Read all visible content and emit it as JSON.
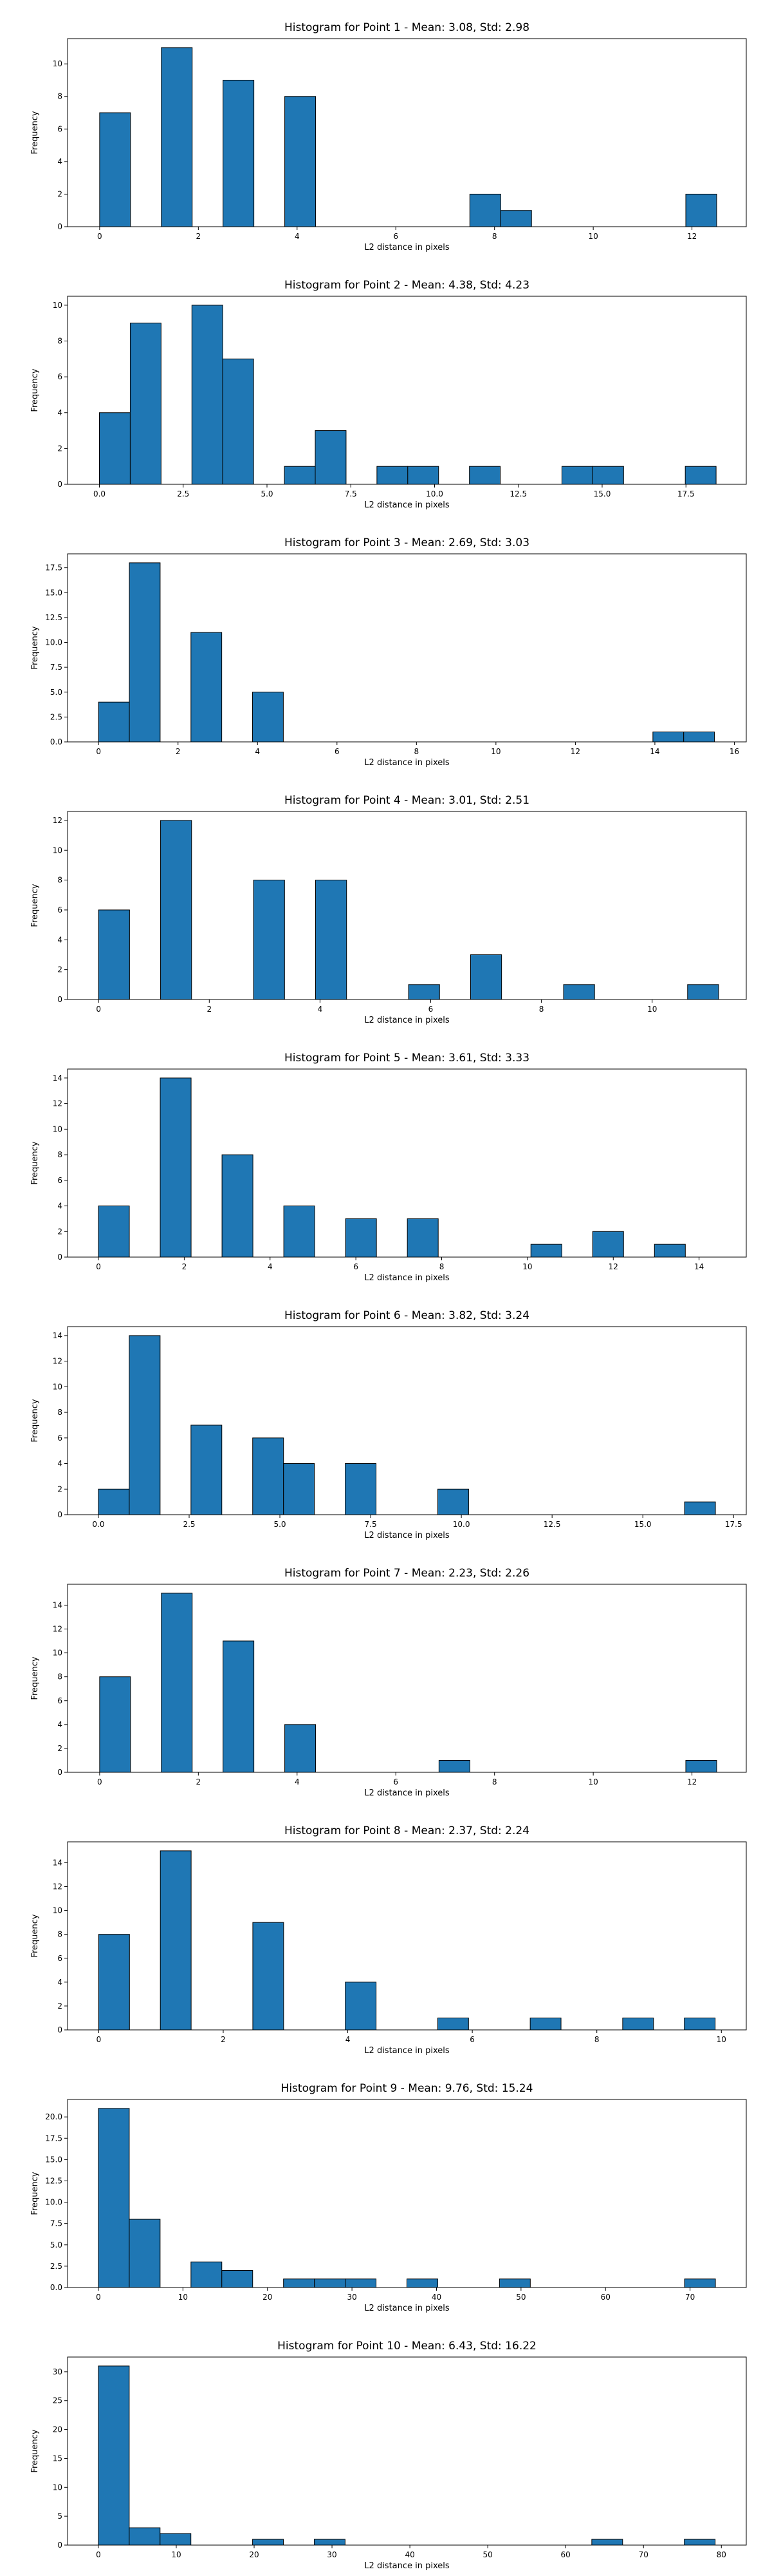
{
  "style": {
    "bar_color": "#1f77b4",
    "edge_color": "#000000"
  },
  "chart_data": [
    {
      "type": "bar",
      "title": "Histogram for Point 1 - Mean: 3.08, Std: 2.98",
      "xlabel": "L2 distance in pixels",
      "ylabel": "Frequency",
      "xlim": [
        -0.65,
        13.1
      ],
      "ylim": [
        0,
        11.55
      ],
      "xticks": [
        0,
        2,
        4,
        6,
        8,
        10,
        12
      ],
      "xtick_labels": [
        "0",
        "2",
        "4",
        "6",
        "8",
        "10",
        "12"
      ],
      "yticks": [
        0,
        2,
        4,
        6,
        8,
        10
      ],
      "ytick_labels": [
        "0",
        "2",
        "4",
        "6",
        "8",
        "10"
      ],
      "bins": [
        {
          "x0": 0.0,
          "x1": 0.625,
          "count": 7
        },
        {
          "x0": 1.25,
          "x1": 1.875,
          "count": 11
        },
        {
          "x0": 2.5,
          "x1": 3.125,
          "count": 9
        },
        {
          "x0": 3.75,
          "x1": 4.375,
          "count": 8
        },
        {
          "x0": 7.5,
          "x1": 8.125,
          "count": 2
        },
        {
          "x0": 8.125,
          "x1": 8.75,
          "count": 1
        },
        {
          "x0": 11.875,
          "x1": 12.5,
          "count": 2
        }
      ]
    },
    {
      "type": "bar",
      "title": "Histogram for Point 2 - Mean: 4.38, Std: 4.23",
      "xlabel": "L2 distance in pixels",
      "ylabel": "Frequency",
      "xlim": [
        -0.95,
        19.3
      ],
      "ylim": [
        0,
        10.5
      ],
      "xticks": [
        0,
        2.5,
        5,
        7.5,
        10,
        12.5,
        15,
        17.5
      ],
      "xtick_labels": [
        "0.0",
        "2.5",
        "5.0",
        "7.5",
        "10.0",
        "12.5",
        "15.0",
        "17.5"
      ],
      "yticks": [
        0,
        2,
        4,
        6,
        8,
        10
      ],
      "ytick_labels": [
        "0",
        "2",
        "4",
        "6",
        "8",
        "10"
      ],
      "bins": [
        {
          "x0": 0.0,
          "x1": 0.92,
          "count": 4
        },
        {
          "x0": 0.92,
          "x1": 1.84,
          "count": 9
        },
        {
          "x0": 2.76,
          "x1": 3.68,
          "count": 10
        },
        {
          "x0": 3.68,
          "x1": 4.6,
          "count": 7
        },
        {
          "x0": 5.52,
          "x1": 6.44,
          "count": 1
        },
        {
          "x0": 6.44,
          "x1": 7.36,
          "count": 3
        },
        {
          "x0": 8.28,
          "x1": 9.2,
          "count": 1
        },
        {
          "x0": 9.2,
          "x1": 10.12,
          "count": 1
        },
        {
          "x0": 11.04,
          "x1": 11.96,
          "count": 1
        },
        {
          "x0": 13.8,
          "x1": 14.72,
          "count": 1
        },
        {
          "x0": 14.72,
          "x1": 15.64,
          "count": 1
        },
        {
          "x0": 17.48,
          "x1": 18.4,
          "count": 1
        }
      ]
    },
    {
      "type": "bar",
      "title": "Histogram for Point 3 - Mean: 2.69, Std: 3.03",
      "xlabel": "L2 distance in pixels",
      "ylabel": "Frequency",
      "xlim": [
        -0.78,
        16.3
      ],
      "ylim": [
        0,
        18.9
      ],
      "xticks": [
        0,
        2,
        4,
        6,
        8,
        10,
        12,
        14,
        16
      ],
      "xtick_labels": [
        "0",
        "2",
        "4",
        "6",
        "8",
        "10",
        "12",
        "14",
        "16"
      ],
      "yticks": [
        0,
        2.5,
        5,
        7.5,
        10,
        12.5,
        15,
        17.5
      ],
      "ytick_labels": [
        "0.0",
        "2.5",
        "5.0",
        "7.5",
        "10.0",
        "12.5",
        "15.0",
        "17.5"
      ],
      "bins": [
        {
          "x0": 0.0,
          "x1": 0.775,
          "count": 4
        },
        {
          "x0": 0.775,
          "x1": 1.55,
          "count": 18
        },
        {
          "x0": 2.325,
          "x1": 3.1,
          "count": 11
        },
        {
          "x0": 3.875,
          "x1": 4.65,
          "count": 5
        },
        {
          "x0": 13.95,
          "x1": 14.725,
          "count": 1
        },
        {
          "x0": 14.725,
          "x1": 15.5,
          "count": 1
        }
      ]
    },
    {
      "type": "bar",
      "title": "Histogram for Point 4 - Mean: 3.01, Std: 2.51",
      "xlabel": "L2 distance in pixels",
      "ylabel": "Frequency",
      "xlim": [
        -0.56,
        11.7
      ],
      "ylim": [
        0,
        12.6
      ],
      "xticks": [
        0,
        2,
        4,
        6,
        8,
        10
      ],
      "xtick_labels": [
        "0",
        "2",
        "4",
        "6",
        "8",
        "10"
      ],
      "yticks": [
        0,
        2,
        4,
        6,
        8,
        10,
        12
      ],
      "ytick_labels": [
        "0",
        "2",
        "4",
        "6",
        "8",
        "10",
        "12"
      ],
      "bins": [
        {
          "x0": 0.0,
          "x1": 0.56,
          "count": 6
        },
        {
          "x0": 1.12,
          "x1": 1.68,
          "count": 12
        },
        {
          "x0": 2.8,
          "x1": 3.36,
          "count": 8
        },
        {
          "x0": 3.92,
          "x1": 4.48,
          "count": 8
        },
        {
          "x0": 5.6,
          "x1": 6.16,
          "count": 1
        },
        {
          "x0": 6.72,
          "x1": 7.28,
          "count": 3
        },
        {
          "x0": 8.4,
          "x1": 8.96,
          "count": 1
        },
        {
          "x0": 10.64,
          "x1": 11.2,
          "count": 1
        }
      ]
    },
    {
      "type": "bar",
      "title": "Histogram for Point 5 - Mean: 3.61, Std: 3.33",
      "xlabel": "L2 distance in pixels",
      "ylabel": "Frequency",
      "xlim": [
        -0.72,
        15.1
      ],
      "ylim": [
        0,
        14.7
      ],
      "xticks": [
        0,
        2,
        4,
        6,
        8,
        10,
        12,
        14
      ],
      "xtick_labels": [
        "0",
        "2",
        "4",
        "6",
        "8",
        "10",
        "12",
        "14"
      ],
      "yticks": [
        0,
        2,
        4,
        6,
        8,
        10,
        12,
        14
      ],
      "ytick_labels": [
        "0",
        "2",
        "4",
        "6",
        "8",
        "10",
        "12",
        "14"
      ],
      "bins": [
        {
          "x0": 0.0,
          "x1": 0.72,
          "count": 4
        },
        {
          "x0": 1.44,
          "x1": 2.16,
          "count": 14
        },
        {
          "x0": 2.88,
          "x1": 3.6,
          "count": 8
        },
        {
          "x0": 4.32,
          "x1": 5.04,
          "count": 4
        },
        {
          "x0": 5.76,
          "x1": 6.48,
          "count": 3
        },
        {
          "x0": 7.2,
          "x1": 7.92,
          "count": 3
        },
        {
          "x0": 10.08,
          "x1": 10.8,
          "count": 1
        },
        {
          "x0": 11.52,
          "x1": 12.24,
          "count": 2
        },
        {
          "x0": 12.96,
          "x1": 13.68,
          "count": 1
        }
      ]
    },
    {
      "type": "bar",
      "title": "Histogram for Point 6 - Mean: 3.82, Std: 3.24",
      "xlabel": "L2 distance in pixels",
      "ylabel": "Frequency",
      "xlim": [
        -0.85,
        17.85
      ],
      "ylim": [
        0,
        14.7
      ],
      "xticks": [
        0,
        2.5,
        5,
        7.5,
        10,
        12.5,
        15,
        17.5
      ],
      "xtick_labels": [
        "0.0",
        "2.5",
        "5.0",
        "7.5",
        "10.0",
        "12.5",
        "15.0",
        "17.5"
      ],
      "yticks": [
        0,
        2,
        4,
        6,
        8,
        10,
        12,
        14
      ],
      "ytick_labels": [
        "0",
        "2",
        "4",
        "6",
        "8",
        "10",
        "12",
        "14"
      ],
      "bins": [
        {
          "x0": 0.0,
          "x1": 0.85,
          "count": 2
        },
        {
          "x0": 0.85,
          "x1": 1.7,
          "count": 14
        },
        {
          "x0": 2.55,
          "x1": 3.4,
          "count": 7
        },
        {
          "x0": 4.25,
          "x1": 5.1,
          "count": 6
        },
        {
          "x0": 5.1,
          "x1": 5.95,
          "count": 4
        },
        {
          "x0": 6.8,
          "x1": 7.65,
          "count": 4
        },
        {
          "x0": 9.35,
          "x1": 10.2,
          "count": 2
        },
        {
          "x0": 16.15,
          "x1": 17.0,
          "count": 1
        }
      ]
    },
    {
      "type": "bar",
      "title": "Histogram for Point 7 - Mean: 2.23, Std: 2.26",
      "xlabel": "L2 distance in pixels",
      "ylabel": "Frequency",
      "xlim": [
        -0.65,
        13.1
      ],
      "ylim": [
        0,
        15.75
      ],
      "xticks": [
        0,
        2,
        4,
        6,
        8,
        10,
        12
      ],
      "xtick_labels": [
        "0",
        "2",
        "4",
        "6",
        "8",
        "10",
        "12"
      ],
      "yticks": [
        0,
        2,
        4,
        6,
        8,
        10,
        12,
        14
      ],
      "ytick_labels": [
        "0",
        "2",
        "4",
        "6",
        "8",
        "10",
        "12",
        "14"
      ],
      "bins": [
        {
          "x0": 0.0,
          "x1": 0.625,
          "count": 8
        },
        {
          "x0": 1.25,
          "x1": 1.875,
          "count": 15
        },
        {
          "x0": 2.5,
          "x1": 3.125,
          "count": 11
        },
        {
          "x0": 3.75,
          "x1": 4.375,
          "count": 4
        },
        {
          "x0": 6.875,
          "x1": 7.5,
          "count": 1
        },
        {
          "x0": 11.875,
          "x1": 12.5,
          "count": 1
        }
      ]
    },
    {
      "type": "bar",
      "title": "Histogram for Point 8 - Mean: 2.37, Std: 2.24",
      "xlabel": "L2 distance in pixels",
      "ylabel": "Frequency",
      "xlim": [
        -0.5,
        10.4
      ],
      "ylim": [
        0,
        15.75
      ],
      "xticks": [
        0,
        2,
        4,
        6,
        8,
        10
      ],
      "xtick_labels": [
        "0",
        "2",
        "4",
        "6",
        "8",
        "10"
      ],
      "yticks": [
        0,
        2,
        4,
        6,
        8,
        10,
        12,
        14
      ],
      "ytick_labels": [
        "0",
        "2",
        "4",
        "6",
        "8",
        "10",
        "12",
        "14"
      ],
      "bins": [
        {
          "x0": 0.0,
          "x1": 0.495,
          "count": 8
        },
        {
          "x0": 0.99,
          "x1": 1.485,
          "count": 15
        },
        {
          "x0": 2.475,
          "x1": 2.97,
          "count": 9
        },
        {
          "x0": 3.96,
          "x1": 4.455,
          "count": 4
        },
        {
          "x0": 5.445,
          "x1": 5.94,
          "count": 1
        },
        {
          "x0": 6.93,
          "x1": 7.425,
          "count": 1
        },
        {
          "x0": 8.415,
          "x1": 8.91,
          "count": 1
        },
        {
          "x0": 9.405,
          "x1": 9.9,
          "count": 1
        }
      ]
    },
    {
      "type": "bar",
      "title": "Histogram for Point 9 - Mean: 9.76, Std: 15.24",
      "xlabel": "L2 distance in pixels",
      "ylabel": "Frequency",
      "xlim": [
        -3.65,
        76.65
      ],
      "ylim": [
        0,
        22.05
      ],
      "xticks": [
        0,
        10,
        20,
        30,
        40,
        50,
        60,
        70
      ],
      "xtick_labels": [
        "0",
        "10",
        "20",
        "30",
        "40",
        "50",
        "60",
        "70"
      ],
      "yticks": [
        0,
        2.5,
        5,
        7.5,
        10,
        12.5,
        15,
        17.5,
        20
      ],
      "ytick_labels": [
        "0.0",
        "2.5",
        "5.0",
        "7.5",
        "10.0",
        "12.5",
        "15.0",
        "17.5",
        "20.0"
      ],
      "bins": [
        {
          "x0": 0.0,
          "x1": 3.65,
          "count": 21
        },
        {
          "x0": 3.65,
          "x1": 7.3,
          "count": 8
        },
        {
          "x0": 10.95,
          "x1": 14.6,
          "count": 3
        },
        {
          "x0": 14.6,
          "x1": 18.25,
          "count": 2
        },
        {
          "x0": 21.9,
          "x1": 25.55,
          "count": 1
        },
        {
          "x0": 25.55,
          "x1": 29.2,
          "count": 1
        },
        {
          "x0": 29.2,
          "x1": 32.85,
          "count": 1
        },
        {
          "x0": 36.5,
          "x1": 40.15,
          "count": 1
        },
        {
          "x0": 47.45,
          "x1": 51.1,
          "count": 1
        },
        {
          "x0": 69.35,
          "x1": 73.0,
          "count": 1
        }
      ]
    },
    {
      "type": "bar",
      "title": "Histogram for Point 10 - Mean: 6.43, Std: 16.22",
      "xlabel": "L2 distance in pixels",
      "ylabel": "Frequency",
      "xlim": [
        -3.96,
        83.2
      ],
      "ylim": [
        0,
        32.55
      ],
      "xticks": [
        0,
        10,
        20,
        30,
        40,
        50,
        60,
        70,
        80
      ],
      "xtick_labels": [
        "0",
        "10",
        "20",
        "30",
        "40",
        "50",
        "60",
        "70",
        "80"
      ],
      "yticks": [
        0,
        5,
        10,
        15,
        20,
        25,
        30
      ],
      "ytick_labels": [
        "0",
        "5",
        "10",
        "15",
        "20",
        "25",
        "30"
      ],
      "bins": [
        {
          "x0": 0.0,
          "x1": 3.96,
          "count": 31
        },
        {
          "x0": 3.96,
          "x1": 7.92,
          "count": 3
        },
        {
          "x0": 7.92,
          "x1": 11.88,
          "count": 2
        },
        {
          "x0": 19.8,
          "x1": 23.76,
          "count": 1
        },
        {
          "x0": 27.72,
          "x1": 31.68,
          "count": 1
        },
        {
          "x0": 63.36,
          "x1": 67.32,
          "count": 1
        },
        {
          "x0": 75.24,
          "x1": 79.2,
          "count": 1
        }
      ]
    }
  ]
}
